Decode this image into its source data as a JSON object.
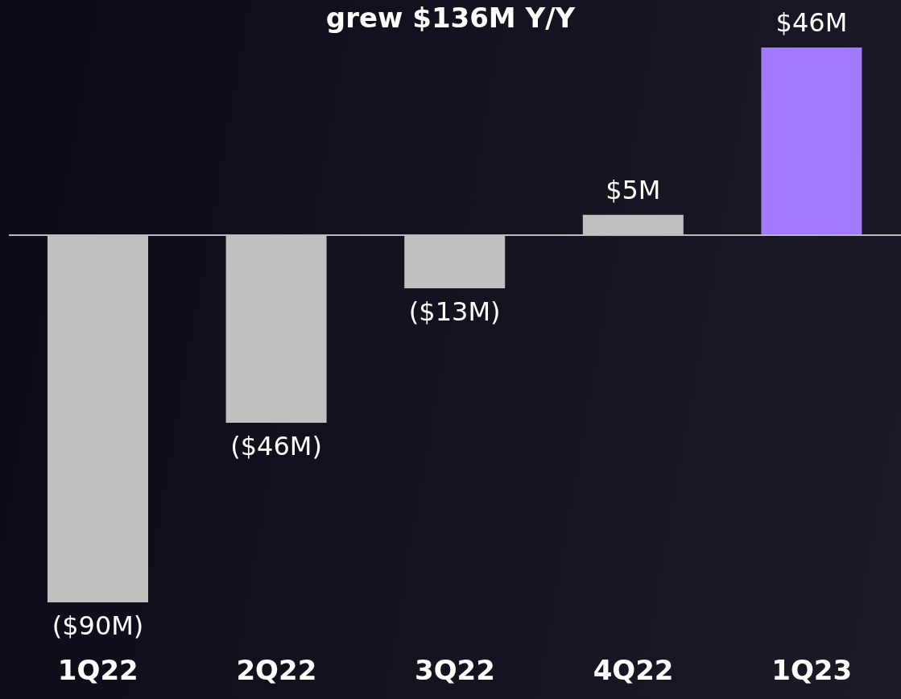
{
  "chart_data": {
    "type": "bar",
    "title": "grew $136M Y/Y",
    "categories": [
      "1Q22",
      "2Q22",
      "3Q22",
      "4Q22",
      "1Q23"
    ],
    "values": [
      -90,
      -46,
      -13,
      5,
      46
    ],
    "colors": [
      "#c0c0c0",
      "#c0c0c0",
      "#c0c0c0",
      "#c0c0c0",
      "#a279ff"
    ],
    "value_labels": [
      "($90M)",
      "($46M)",
      "($13M)",
      "$5M",
      "$46M"
    ],
    "grid": false,
    "legend": false
  }
}
